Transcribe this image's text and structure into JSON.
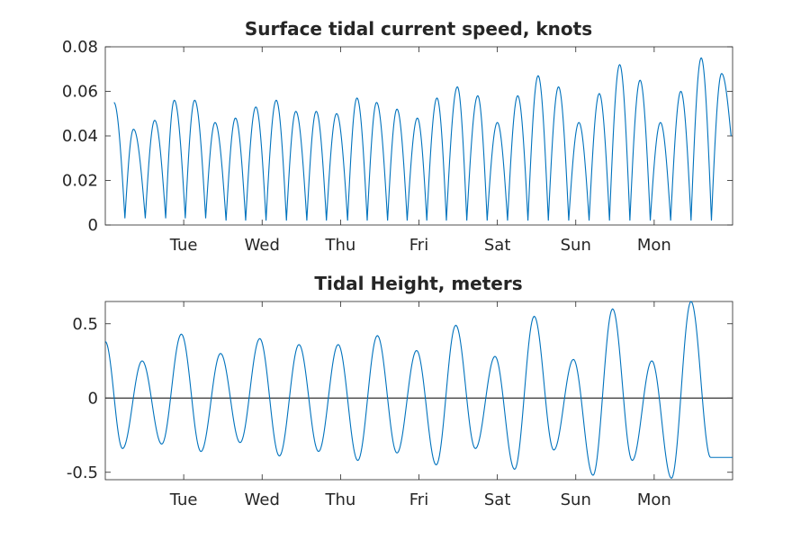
{
  "chart_data": [
    {
      "type": "line",
      "title": "Surface tidal current speed, knots",
      "xlabel": "",
      "ylabel": "",
      "x_units": "days",
      "xlim": [
        0,
        8
      ],
      "ylim": [
        0,
        0.08
      ],
      "yticks": [
        0,
        0.02,
        0.04,
        0.06,
        0.08
      ],
      "ytick_labels": [
        "0",
        "0.02",
        "0.04",
        "0.06",
        "0.08"
      ],
      "xticks": [
        1,
        2,
        3,
        4,
        5,
        6,
        7
      ],
      "xtick_labels": [
        "Tue",
        "Wed",
        "Thu",
        "Fri",
        "Sat",
        "Sun",
        "Mon"
      ],
      "grid": false,
      "line_color": "#0072bd",
      "series": [
        {
          "x": [
            0.11,
            0.25,
            0.36,
            0.51,
            0.63,
            0.77,
            0.88,
            1.02,
            1.14,
            1.28,
            1.4,
            1.54,
            1.66,
            1.79,
            1.92,
            2.05,
            2.18,
            2.31,
            2.43,
            2.57,
            2.69,
            2.82,
            2.95,
            3.09,
            3.21,
            3.34,
            3.46,
            3.6,
            3.72,
            3.85,
            3.98,
            4.1,
            4.23,
            4.35,
            4.49,
            4.61,
            4.75,
            4.87,
            5.0,
            5.13,
            5.26,
            5.39,
            5.52,
            5.65,
            5.78,
            5.91,
            6.04,
            6.17,
            6.3,
            6.43,
            6.56,
            6.69,
            6.82,
            6.95,
            7.08,
            7.21,
            7.34,
            7.47,
            7.6,
            7.73,
            7.86,
            7.98
          ],
          "y": [
            0.055,
            0.003,
            0.043,
            0.003,
            0.047,
            0.003,
            0.056,
            0.003,
            0.056,
            0.003,
            0.046,
            0.002,
            0.048,
            0.002,
            0.053,
            0.002,
            0.056,
            0.002,
            0.051,
            0.002,
            0.051,
            0.002,
            0.05,
            0.002,
            0.057,
            0.002,
            0.055,
            0.002,
            0.052,
            0.002,
            0.048,
            0.002,
            0.057,
            0.002,
            0.062,
            0.002,
            0.058,
            0.002,
            0.046,
            0.002,
            0.058,
            0.002,
            0.067,
            0.002,
            0.062,
            0.002,
            0.046,
            0.002,
            0.059,
            0.002,
            0.072,
            0.002,
            0.065,
            0.002,
            0.046,
            0.002,
            0.06,
            0.002,
            0.075,
            0.002,
            0.068,
            0.04
          ]
        }
      ]
    },
    {
      "type": "line",
      "title": "Tidal Height, meters",
      "xlabel": "",
      "ylabel": "",
      "x_units": "days",
      "xlim": [
        0,
        8
      ],
      "ylim": [
        -0.55,
        0.65
      ],
      "yticks": [
        -0.5,
        0,
        0.5
      ],
      "ytick_labels": [
        "-0.5",
        "0",
        "0.5"
      ],
      "xticks": [
        1,
        2,
        3,
        4,
        5,
        6,
        7
      ],
      "xtick_labels": [
        "Tue",
        "Wed",
        "Thu",
        "Fri",
        "Sat",
        "Sun",
        "Mon"
      ],
      "grid": false,
      "zero_line": true,
      "line_color": "#0072bd",
      "series": [
        {
          "x": [
            0.0,
            0.22,
            0.47,
            0.72,
            0.97,
            1.22,
            1.47,
            1.72,
            1.97,
            2.22,
            2.47,
            2.72,
            2.97,
            3.22,
            3.47,
            3.72,
            3.97,
            4.22,
            4.47,
            4.72,
            4.97,
            5.22,
            5.47,
            5.72,
            5.97,
            6.22,
            6.47,
            6.72,
            6.97,
            7.22,
            7.47,
            7.72,
            8.0
          ],
          "y": [
            0.38,
            -0.34,
            0.25,
            -0.31,
            0.43,
            -0.36,
            0.3,
            -0.3,
            0.4,
            -0.39,
            0.36,
            -0.36,
            0.36,
            -0.42,
            0.42,
            -0.37,
            0.32,
            -0.45,
            0.49,
            -0.34,
            0.28,
            -0.48,
            0.55,
            -0.35,
            0.26,
            -0.52,
            0.6,
            -0.42,
            0.25,
            -0.54,
            0.65,
            -0.4,
            -0.4
          ]
        }
      ]
    }
  ]
}
